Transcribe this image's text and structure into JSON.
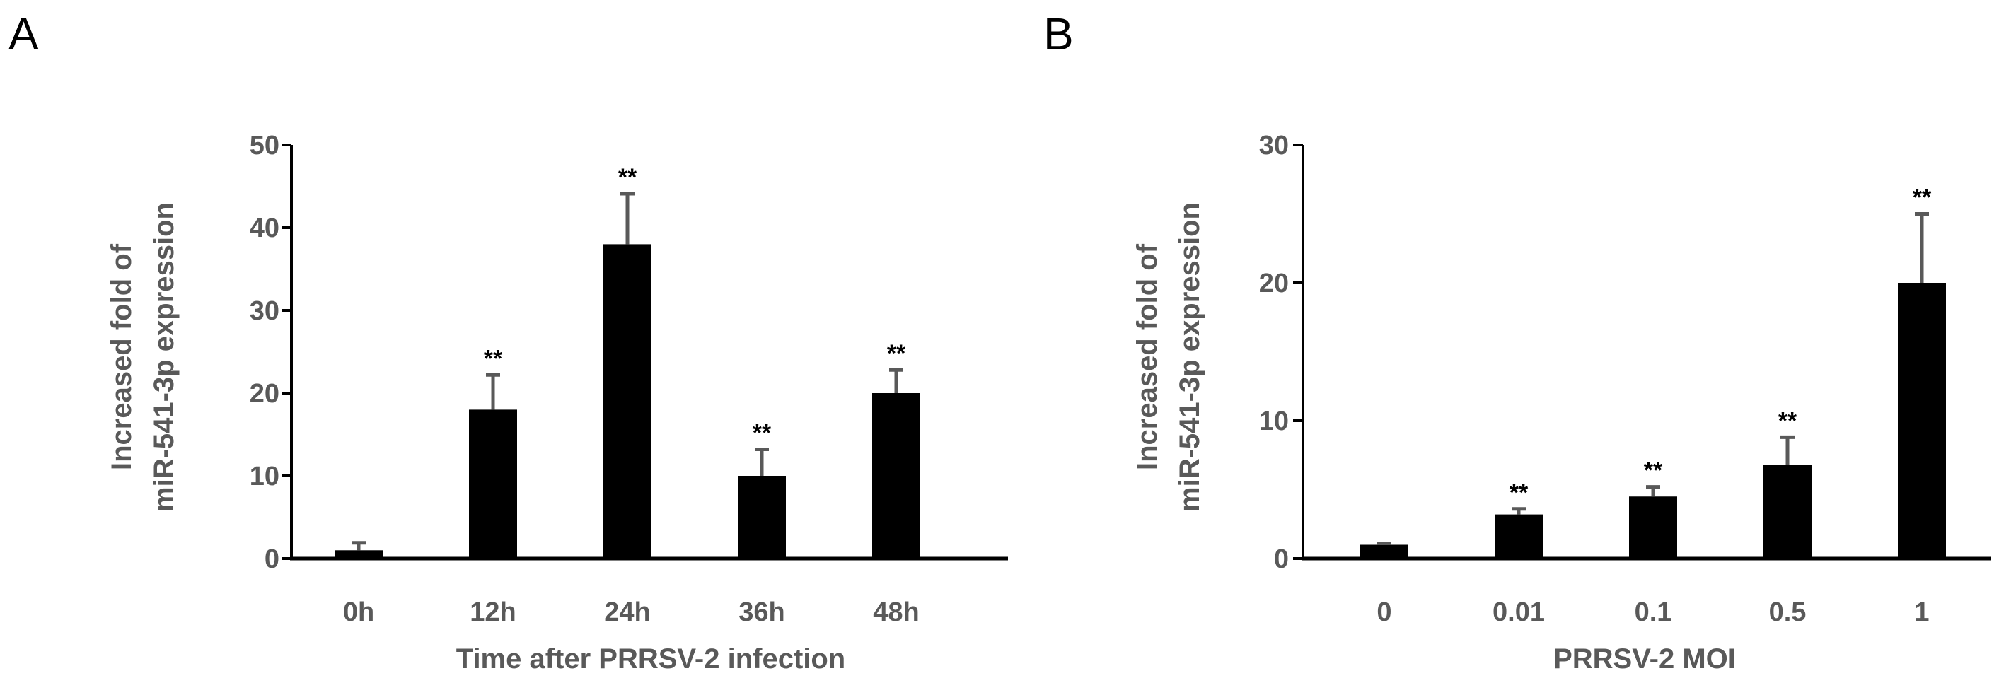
{
  "chart_data": [
    {
      "panel": "A",
      "type": "bar",
      "categories": [
        "0h",
        "12h",
        "24h",
        "36h",
        "48h"
      ],
      "values": [
        1,
        18,
        38,
        10,
        20
      ],
      "errors": [
        0.9,
        4.2,
        6.1,
        3.2,
        2.8
      ],
      "annotations": [
        "",
        "**",
        "**",
        "**",
        "**"
      ],
      "ylabel_line1": "Increased fold of",
      "ylabel_line2": "miR-541-3p expression",
      "xlabel": "Time after PRRSV-2 infection",
      "ylim": [
        0,
        50
      ],
      "yticks": [
        0,
        10,
        20,
        30,
        40,
        50
      ],
      "bar_color": "#000000",
      "error_color": "#595959",
      "grid": false
    },
    {
      "panel": "B",
      "type": "bar",
      "categories": [
        "0",
        "0.01",
        "0.1",
        "0.5",
        "1"
      ],
      "values": [
        1,
        3.2,
        4.5,
        6.8,
        20
      ],
      "errors": [
        0.1,
        0.4,
        0.7,
        2.0,
        5.0
      ],
      "annotations": [
        "",
        "**",
        "**",
        "**",
        "**"
      ],
      "ylabel_line1": "Increased fold of",
      "ylabel_line2": "miR-541-3p expression",
      "xlabel": "PRRSV-2 MOI",
      "ylim": [
        0,
        30
      ],
      "yticks": [
        0,
        10,
        20,
        30
      ],
      "bar_color": "#000000",
      "error_color": "#595959",
      "grid": false
    }
  ]
}
